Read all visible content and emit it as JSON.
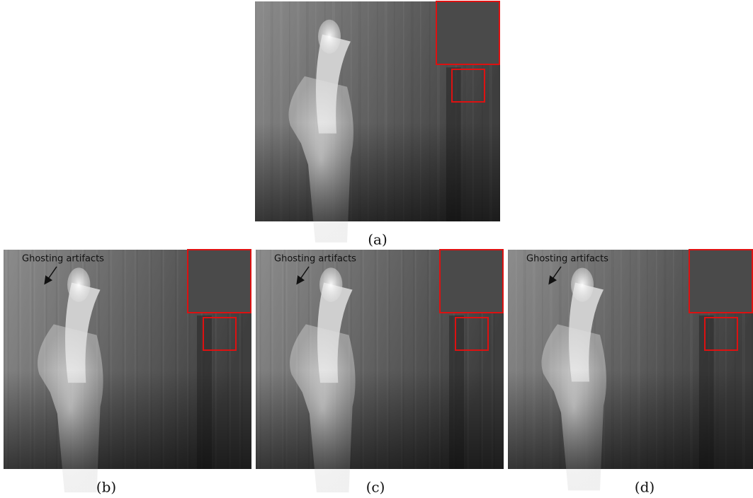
{
  "figure": {
    "panels": [
      {
        "caption": "(a)"
      },
      {
        "caption": "(b)",
        "annotation": "Ghosting artifacts"
      },
      {
        "caption": "(c)",
        "annotation": "Ghosting artifacts"
      },
      {
        "caption": "(d)",
        "annotation": "Ghosting artifacts"
      }
    ]
  }
}
